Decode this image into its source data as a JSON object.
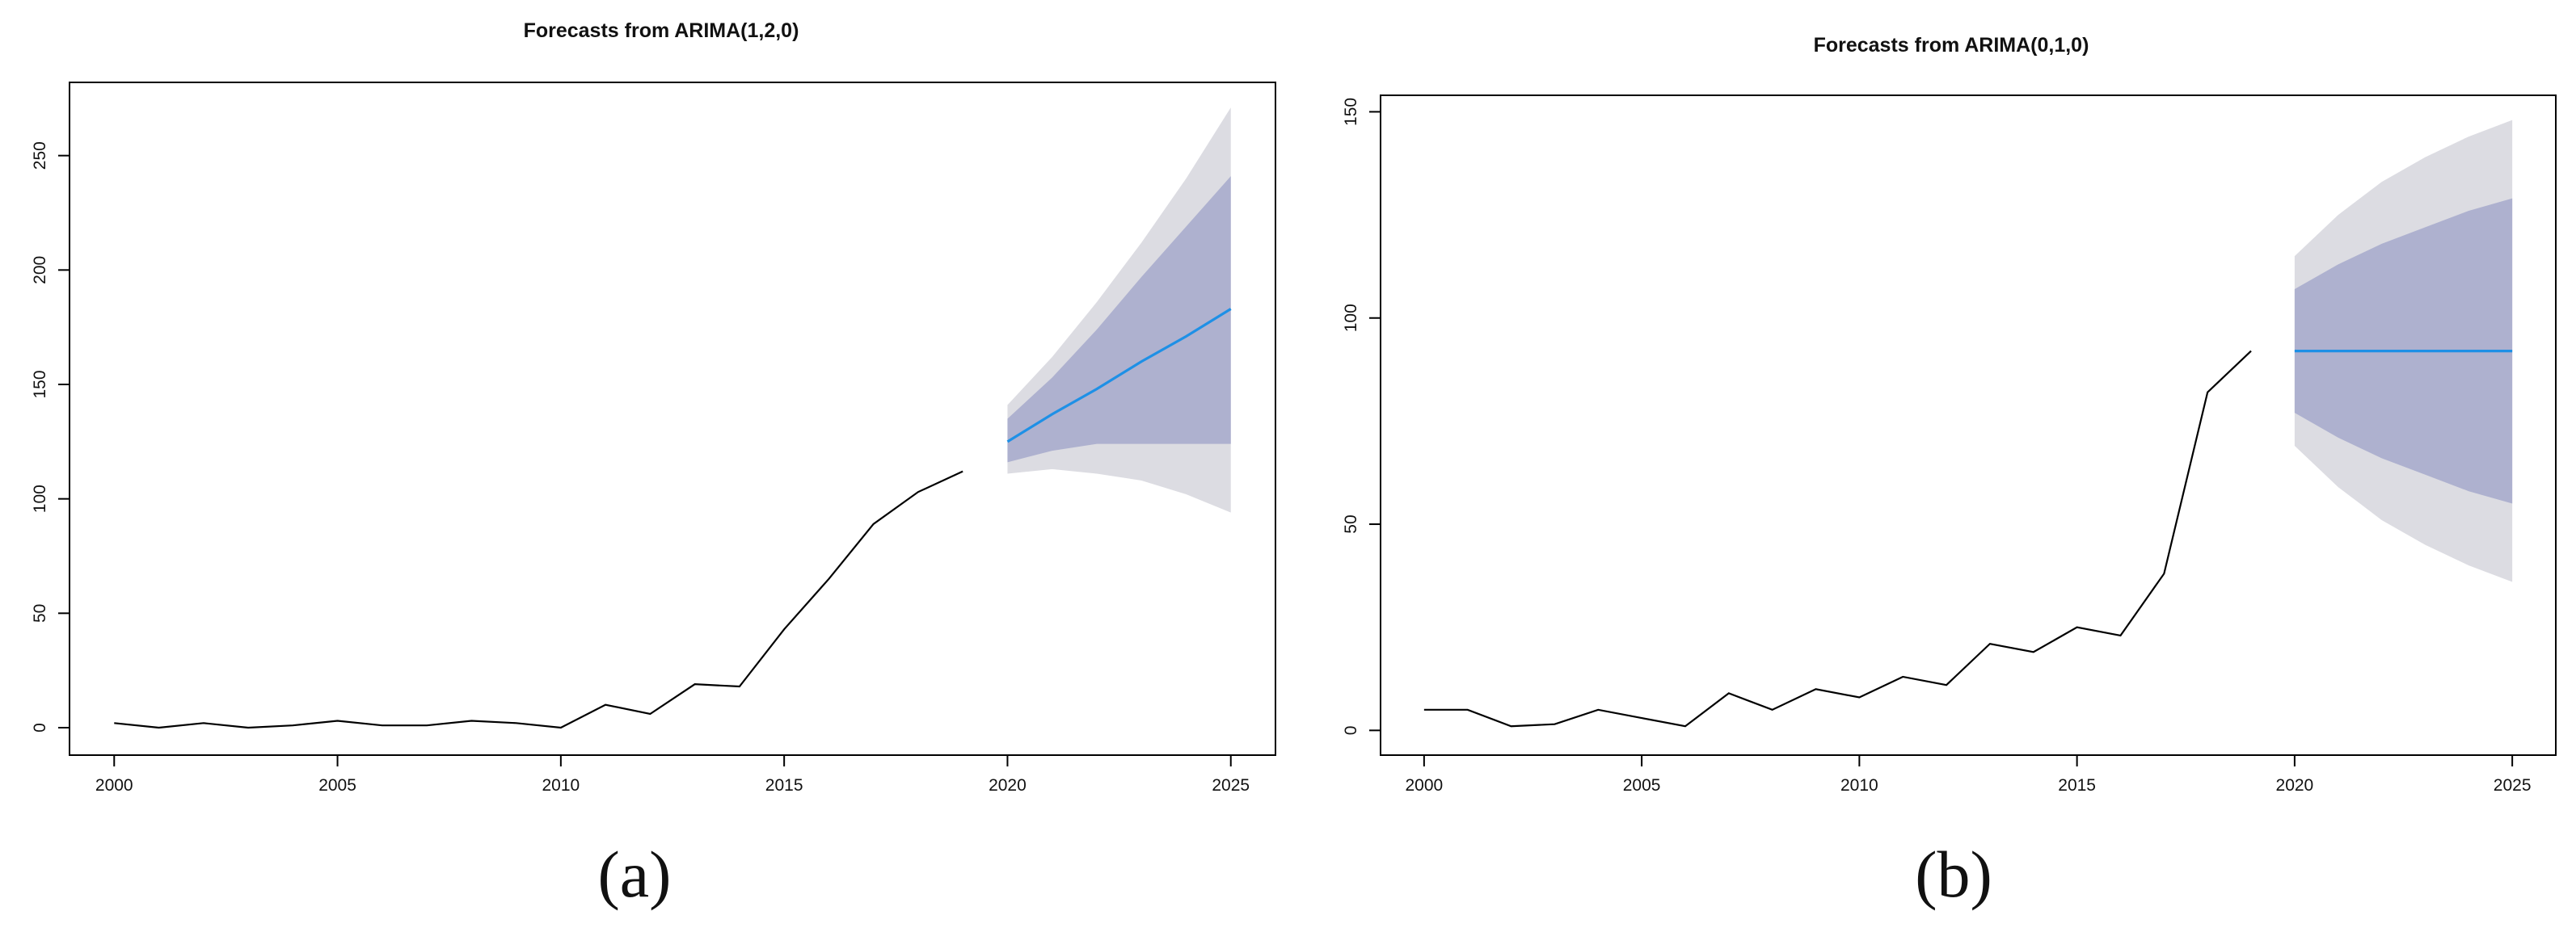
{
  "figure": {
    "panel_labels": [
      "(a)",
      "(b)"
    ]
  },
  "colors": {
    "observed_line": "#000000",
    "forecast_line": "#1e90e6",
    "interval_80": "#aeb1cf",
    "interval_95": "#dcdce2",
    "axis": "#000000"
  },
  "chart_data": [
    {
      "type": "line",
      "title": "Forecasts from ARIMA(1,2,0)",
      "xlabel": "",
      "ylabel": "",
      "xlim": [
        1999.0,
        2026.0
      ],
      "ylim": [
        -12,
        282
      ],
      "x_ticks": [
        2000,
        2005,
        2010,
        2015,
        2020,
        2025
      ],
      "y_ticks": [
        0,
        50,
        100,
        150,
        200,
        250
      ],
      "grid": false,
      "legend": "none",
      "observed": {
        "x": [
          2000,
          2001,
          2002,
          2003,
          2004,
          2005,
          2006,
          2007,
          2008,
          2009,
          2010,
          2011,
          2012,
          2013,
          2014,
          2015,
          2016,
          2017,
          2018,
          2019
        ],
        "y": [
          2,
          0,
          2,
          0,
          1,
          3,
          1,
          1,
          3,
          2,
          0,
          10,
          6,
          19,
          18,
          43,
          65,
          89,
          103,
          112
        ]
      },
      "forecast": {
        "x": [
          2020,
          2021,
          2022,
          2023,
          2024,
          2025
        ],
        "mean": [
          125,
          137,
          148,
          160,
          171,
          183
        ],
        "lo80": [
          116,
          121,
          124,
          124,
          124,
          124
        ],
        "hi80": [
          135,
          153,
          174,
          197,
          219,
          241
        ],
        "lo95": [
          111,
          113,
          111,
          108,
          102,
          94
        ],
        "hi95": [
          141,
          162,
          186,
          212,
          240,
          271
        ]
      }
    },
    {
      "type": "line",
      "title": "Forecasts from ARIMA(0,1,0)",
      "xlabel": "",
      "ylabel": "",
      "xlim": [
        1999.0,
        2026.0
      ],
      "ylim": [
        -6,
        154
      ],
      "x_ticks": [
        2000,
        2005,
        2010,
        2015,
        2020,
        2025
      ],
      "y_ticks": [
        0,
        50,
        100,
        150
      ],
      "grid": false,
      "legend": "none",
      "observed": {
        "x": [
          2000,
          2001,
          2002,
          2003,
          2004,
          2005,
          2006,
          2007,
          2008,
          2009,
          2010,
          2011,
          2012,
          2013,
          2014,
          2015,
          2016,
          2017,
          2018,
          2019
        ],
        "y": [
          5,
          5,
          1,
          1.5,
          5,
          3,
          1,
          9,
          5,
          10,
          8,
          13,
          11,
          21,
          19,
          25,
          23,
          38,
          82,
          92
        ]
      },
      "forecast": {
        "x": [
          2020,
          2021,
          2022,
          2023,
          2024,
          2025
        ],
        "mean": [
          92,
          92,
          92,
          92,
          92,
          92
        ],
        "lo80": [
          77,
          71,
          66,
          62,
          58,
          55
        ],
        "hi80": [
          107,
          113,
          118,
          122,
          126,
          129
        ],
        "lo95": [
          69,
          59,
          51,
          45,
          40,
          36
        ],
        "hi95": [
          115,
          125,
          133,
          139,
          144,
          148
        ]
      }
    }
  ]
}
